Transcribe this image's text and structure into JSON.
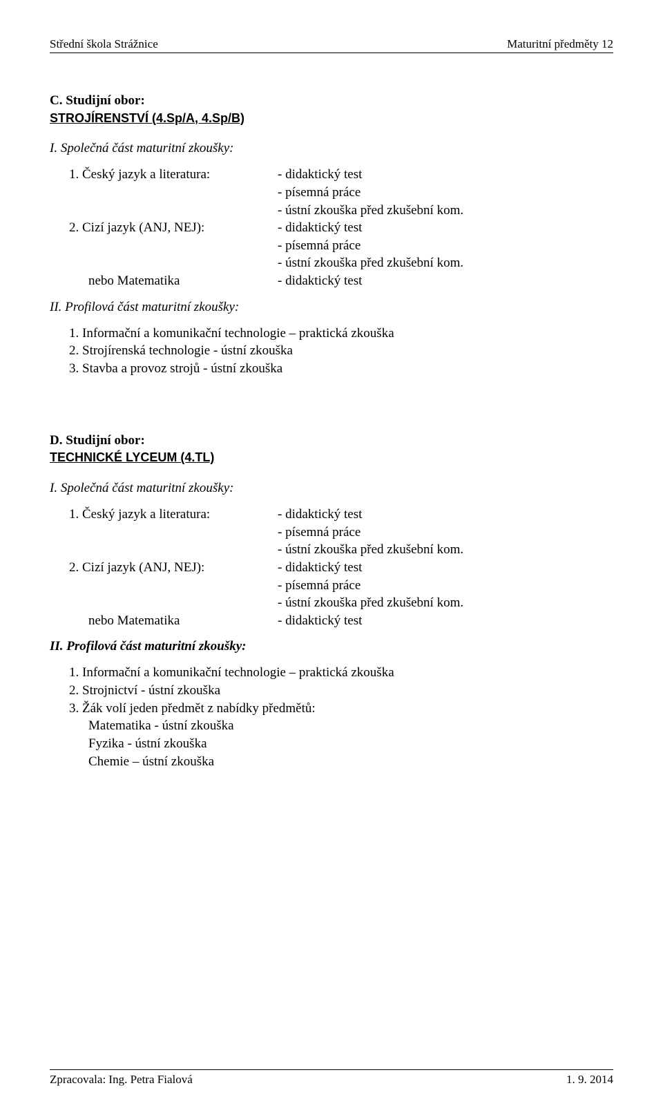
{
  "header": {
    "left": "Střední škola Strážnice",
    "right": "Maturitní předměty 12"
  },
  "sectionC": {
    "prefix": "C. Studijní obor:",
    "title": "STROJÍRENSTVÍ (4.Sp/A, 4.Sp/B)",
    "part1_heading": "I. Společná část maturitní zkoušky:",
    "row1_left": "1. Český jazyk a literatura:",
    "row1_r1": "- didaktický test",
    "row1_r2": "- písemná práce",
    "row1_r3": "- ústní zkouška před zkušební kom.",
    "row2_left": "2. Cizí jazyk (ANJ, NEJ):",
    "row2_r1": "- didaktický test",
    "row2_r2": "- písemná práce",
    "row2_r3": "- ústní zkouška před zkušební kom.",
    "row3_left": "nebo Matematika",
    "row3_r1": "- didaktický test",
    "part2_heading": "II. Profilová část maturitní zkoušky:",
    "p2_l1": "1. Informační a komunikační technologie – praktická zkouška",
    "p2_l2": "2. Strojírenská technologie - ústní zkouška",
    "p2_l3": "3. Stavba a provoz strojů - ústní zkouška"
  },
  "sectionD": {
    "prefix": "D. Studijní obor:",
    "title": "TECHNICKÉ LYCEUM (4.TL)",
    "part1_heading": "I. Společná část maturitní zkoušky:",
    "row1_left": "1. Český jazyk a literatura:",
    "row1_r1": "- didaktický test",
    "row1_r2": "- písemná práce",
    "row1_r3": "- ústní zkouška před zkušební kom.",
    "row2_left": "2. Cizí jazyk (ANJ, NEJ):",
    "row2_r1": "- didaktický test",
    "row2_r2": "- písemná práce",
    "row2_r3": "- ústní zkouška před zkušební kom.",
    "row3_left": "nebo Matematika",
    "row3_r1": "- didaktický test",
    "part2_heading": "II. Profilová část maturitní zkoušky:",
    "p2_l1": "1. Informační a komunikační technologie – praktická zkouška",
    "p2_l2": "2. Strojnictví - ústní zkouška",
    "p2_l3": "3. Žák volí jeden předmět z nabídky předmětů:",
    "p2_l4": "Matematika - ústní zkouška",
    "p2_l5": "Fyzika - ústní zkouška",
    "p2_l6": "Chemie – ústní zkouška"
  },
  "footer": {
    "left": "Zpracovala: Ing. Petra Fialová",
    "right": "1. 9. 2014"
  }
}
